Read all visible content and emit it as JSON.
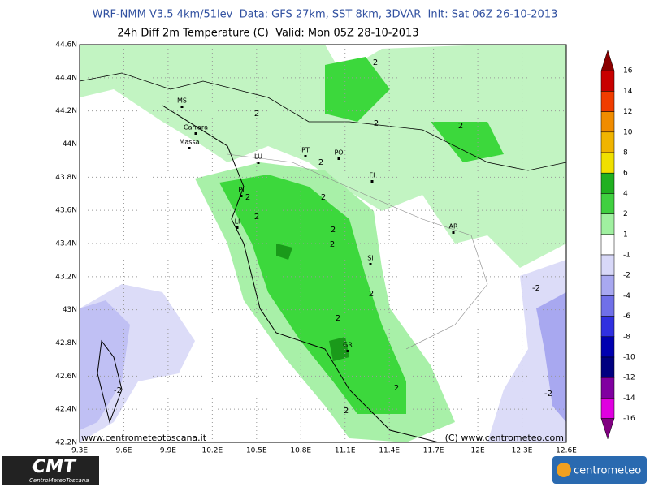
{
  "header": {
    "line1": "WRF-NMM V3.5 4km/51lev  Data: GFS 27km, SST 8km, 3DVAR  Init: Sat 06Z 26-10-2013",
    "line2": "24h Diff 2m Temperature (C)  Valid: Mon 05Z 28-10-2013"
  },
  "map": {
    "lon_labels": [
      "9.3E",
      "9.6E",
      "9.9E",
      "10.2E",
      "10.5E",
      "10.8E",
      "11.1E",
      "11.4E",
      "11.7E",
      "12E",
      "12.3E",
      "12.6E"
    ],
    "lat_labels": [
      "44.6N",
      "44.4N",
      "44.2N",
      "44N",
      "43.8N",
      "43.6N",
      "43.4N",
      "43.2N",
      "43N",
      "42.8N",
      "42.6N",
      "42.4N",
      "42.2N"
    ],
    "cities": [
      "MS",
      "Carrara",
      "Massa",
      "LU",
      "PT",
      "PO",
      "FI",
      "PI",
      "LI",
      "AR",
      "SI",
      "GR"
    ],
    "contour_labels": [
      "2",
      "2",
      "2",
      "2",
      "2",
      "2",
      "2",
      "2",
      "2",
      "2",
      "2",
      "2",
      "2",
      "2",
      "-2",
      "-2",
      "-2"
    ],
    "credit_left": "www.centrometeotoscana.it",
    "credit_right": "(C) www.centrometeo.com"
  },
  "colorbar": {
    "labels": [
      "16",
      "14",
      "12",
      "10",
      "8",
      "6",
      "4",
      "2",
      "1",
      "-1",
      "-2",
      "-4",
      "-6",
      "-8",
      "-10",
      "-12",
      "-14",
      "-16"
    ],
    "colors": [
      "#8b0000",
      "#c80000",
      "#f03c00",
      "#f08c00",
      "#f0b400",
      "#f0e000",
      "#20b020",
      "#40d040",
      "#a0f0a0",
      "#ffffff",
      "#d8d8f8",
      "#a8a8f0",
      "#7070e8",
      "#3030e0",
      "#0000b0",
      "#000080",
      "#8000a0",
      "#e000e0",
      "#800080"
    ]
  },
  "logos": {
    "cmt": "CMT",
    "cmt_sub": "CentroMeteoToscana",
    "cm": "centrometeo"
  }
}
